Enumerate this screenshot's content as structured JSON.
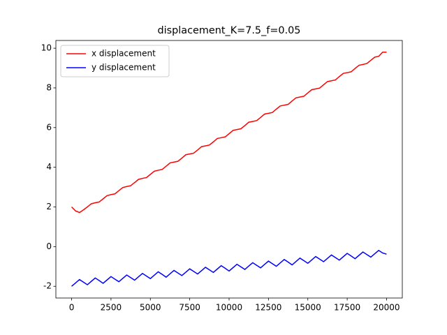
{
  "chart_data": {
    "type": "line",
    "title": "displacement_K=7.5_f=0.05",
    "x": [
      0,
      250,
      500,
      750,
      1000,
      1250,
      1500,
      1750,
      2000,
      2250,
      2500,
      2750,
      3000,
      3250,
      3500,
      3750,
      4000,
      4250,
      4500,
      4750,
      5000,
      5250,
      5500,
      5750,
      6000,
      6250,
      6500,
      6750,
      7000,
      7250,
      7500,
      7750,
      8000,
      8250,
      8500,
      8750,
      9000,
      9250,
      9500,
      9750,
      10000,
      10250,
      10500,
      10750,
      11000,
      11250,
      11500,
      11750,
      12000,
      12250,
      12500,
      12750,
      13000,
      13250,
      13500,
      13750,
      14000,
      14250,
      14500,
      14750,
      15000,
      15250,
      15500,
      15750,
      16000,
      16250,
      16500,
      16750,
      17000,
      17250,
      17500,
      17750,
      18000,
      18250,
      18500,
      18750,
      19000,
      19250,
      19500,
      19750,
      20000
    ],
    "series": [
      {
        "name": "x displacement",
        "color": "#ff0000",
        "values": [
          2.0,
          1.8,
          1.72,
          1.85,
          2.0,
          2.16,
          2.21,
          2.25,
          2.41,
          2.57,
          2.62,
          2.66,
          2.82,
          2.98,
          3.03,
          3.07,
          3.23,
          3.39,
          3.44,
          3.48,
          3.64,
          3.8,
          3.85,
          3.89,
          4.05,
          4.22,
          4.26,
          4.3,
          4.46,
          4.63,
          4.67,
          4.71,
          4.87,
          5.04,
          5.08,
          5.12,
          5.28,
          5.45,
          5.49,
          5.53,
          5.69,
          5.86,
          5.9,
          5.94,
          6.1,
          6.27,
          6.31,
          6.35,
          6.51,
          6.68,
          6.72,
          6.76,
          6.93,
          7.09,
          7.13,
          7.17,
          7.34,
          7.5,
          7.54,
          7.58,
          7.75,
          7.91,
          7.95,
          7.99,
          8.16,
          8.32,
          8.36,
          8.4,
          8.57,
          8.73,
          8.77,
          8.81,
          8.98,
          9.14,
          9.18,
          9.23,
          9.39,
          9.55,
          9.59,
          9.8,
          9.8
        ]
      },
      {
        "name": "y displacement",
        "color": "#0000ff",
        "values": [
          -2.0,
          -1.83,
          -1.66,
          -1.79,
          -1.92,
          -1.75,
          -1.58,
          -1.71,
          -1.85,
          -1.68,
          -1.51,
          -1.64,
          -1.77,
          -1.6,
          -1.43,
          -1.56,
          -1.69,
          -1.52,
          -1.35,
          -1.48,
          -1.61,
          -1.44,
          -1.27,
          -1.4,
          -1.54,
          -1.37,
          -1.2,
          -1.33,
          -1.46,
          -1.29,
          -1.12,
          -1.25,
          -1.38,
          -1.21,
          -1.04,
          -1.17,
          -1.3,
          -1.13,
          -0.96,
          -1.09,
          -1.23,
          -1.06,
          -0.89,
          -1.02,
          -1.15,
          -0.98,
          -0.81,
          -0.94,
          -1.07,
          -0.9,
          -0.73,
          -0.86,
          -0.99,
          -0.82,
          -0.65,
          -0.78,
          -0.92,
          -0.75,
          -0.58,
          -0.71,
          -0.84,
          -0.67,
          -0.5,
          -0.63,
          -0.76,
          -0.59,
          -0.42,
          -0.55,
          -0.68,
          -0.51,
          -0.34,
          -0.47,
          -0.61,
          -0.44,
          -0.27,
          -0.4,
          -0.53,
          -0.36,
          -0.19,
          -0.32,
          -0.38
        ]
      }
    ],
    "xlim": [
      -1000,
      21000
    ],
    "xticks": [
      0,
      2500,
      5000,
      7500,
      10000,
      12500,
      15000,
      17500,
      20000
    ],
    "ylim": [
      -2.59,
      10.39
    ],
    "yticks": [
      -2,
      0,
      2,
      4,
      6,
      8,
      10
    ],
    "legend": "upper left"
  }
}
